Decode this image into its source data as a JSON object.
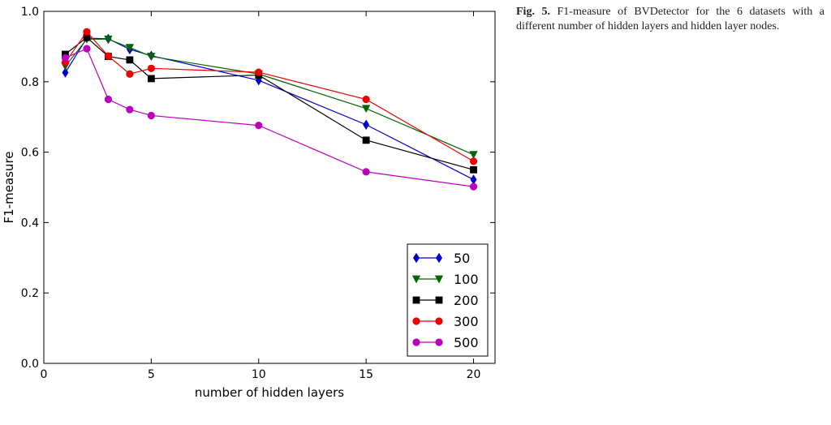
{
  "figure": {
    "caption_label": "Fig. 5.",
    "caption_text": "F1-measure of BVDetector for the 6 datasets with a different number of hidden layers and hidden layer nodes."
  },
  "chart_data": {
    "type": "line",
    "title": "",
    "xlabel": "number of hidden layers",
    "ylabel": "F1-measure",
    "xlim": [
      0,
      21
    ],
    "ylim": [
      0.0,
      1.0
    ],
    "xticks": [
      0,
      5,
      10,
      15,
      20
    ],
    "xtick_labels": [
      "0",
      "5",
      "10",
      "15",
      "20"
    ],
    "yticks": [
      0.0,
      0.2,
      0.4,
      0.6,
      0.8,
      1.0
    ],
    "ytick_labels": [
      "0.0",
      "0.2",
      "0.4",
      "0.6",
      "0.8",
      "1.0"
    ],
    "grid": false,
    "legend_position": "lower-right",
    "x": [
      1,
      2,
      3,
      4,
      5,
      10,
      15,
      20
    ],
    "series": [
      {
        "name": "50",
        "color": "#0000cc",
        "marker": "diamond",
        "values": [
          0.826,
          0.924,
          0.922,
          0.892,
          0.874,
          0.804,
          0.678,
          0.522
        ]
      },
      {
        "name": "100",
        "color": "#006400",
        "marker": "triangle-down",
        "values": [
          0.844,
          0.921,
          0.921,
          0.897,
          0.872,
          0.822,
          0.724,
          0.593
        ]
      },
      {
        "name": "200",
        "color": "#000000",
        "marker": "square",
        "values": [
          0.878,
          0.926,
          0.872,
          0.862,
          0.809,
          0.819,
          0.634,
          0.55
        ]
      },
      {
        "name": "300",
        "color": "#ee0000",
        "marker": "circle",
        "values": [
          0.855,
          0.942,
          0.873,
          0.822,
          0.838,
          0.827,
          0.75,
          0.574
        ]
      },
      {
        "name": "500",
        "color": "#bb00bb",
        "marker": "circle",
        "values": [
          0.868,
          0.894,
          0.75,
          0.721,
          0.704,
          0.676,
          0.544,
          0.502
        ]
      }
    ]
  }
}
